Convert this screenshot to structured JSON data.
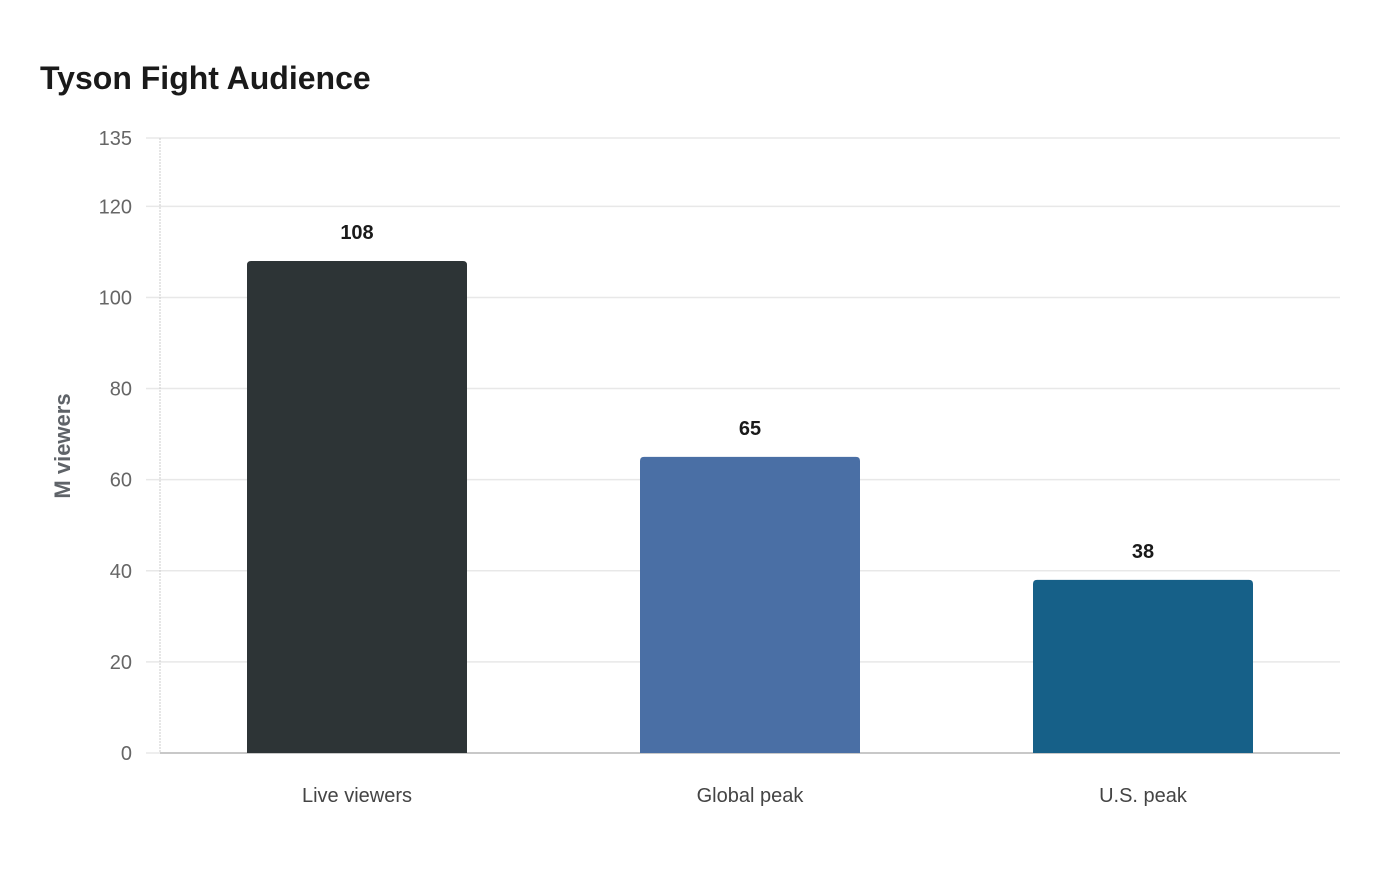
{
  "chart_data": {
    "type": "bar",
    "title": "Tyson Fight Audience",
    "ylabel": "M viewers",
    "xlabel": "",
    "categories": [
      "Live viewers",
      "Global peak",
      "U.S. peak"
    ],
    "values": [
      108,
      65,
      38
    ],
    "data_labels": [
      "108",
      "65",
      "38"
    ],
    "colors": [
      "#2d3436",
      "#4a6fa5",
      "#166088"
    ],
    "ylim": [
      0,
      135
    ],
    "yticks": [
      0,
      20,
      40,
      60,
      80,
      100,
      120,
      135
    ],
    "grid": true,
    "legend": "none",
    "gridline_color": "#e8e8e8",
    "axis_color": "#cccccc"
  }
}
